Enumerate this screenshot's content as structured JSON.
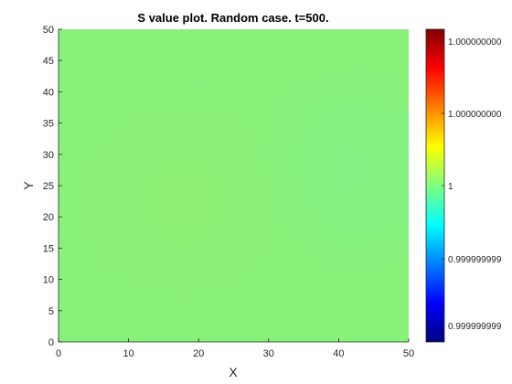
{
  "chart_data": {
    "type": "heatmap",
    "title": "S value plot. Random case. t=500.",
    "xlabel": "X",
    "ylabel": "Y",
    "xlim": [
      0,
      50
    ],
    "ylim": [
      0,
      50
    ],
    "x_ticks": [
      "0",
      "10",
      "20",
      "30",
      "40",
      "50"
    ],
    "y_ticks": [
      "0",
      "5",
      "10",
      "15",
      "20",
      "25",
      "30",
      "35",
      "40",
      "45",
      "50"
    ],
    "colormap": "jet",
    "field_value": 1,
    "field_color": "#88f17a",
    "colorbar_ticks": [
      "1.000000000",
      "1.000000000",
      "1",
      "0.999999999",
      "0.999999999"
    ],
    "colorbar_stops": [
      "#00007f",
      "#0000ff",
      "#007fff",
      "#00ffff",
      "#7fff7f",
      "#ffff00",
      "#ff7f00",
      "#ff0000",
      "#7f0000"
    ]
  }
}
